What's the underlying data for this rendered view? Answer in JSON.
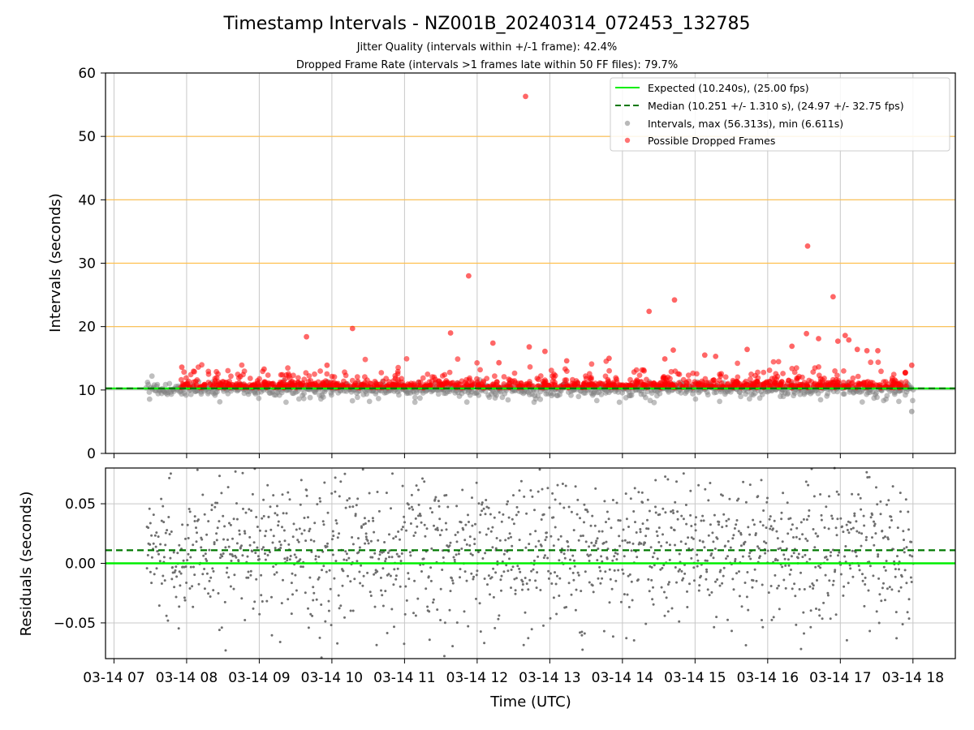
{
  "colors": {
    "expected": "#00ee00",
    "median": "#007700",
    "intervals": "#808080",
    "dropped": "#ff0000",
    "reference_line": "#ffc04d",
    "grid": "#c8c8c8"
  },
  "chart_data": [
    {
      "type": "scatter",
      "title": "Timestamp Intervals - NZ001B_20240314_072453_132785",
      "subtitle_lines": [
        "Jitter Quality (intervals within +/-1 frame): 42.4%",
        "Dropped Frame Rate (intervals >1 frames late within 50 FF files): 79.7%"
      ],
      "xlabel": "",
      "ylabel": "Intervals (seconds)",
      "ylim": [
        0,
        60
      ],
      "yticks": [
        0,
        10,
        20,
        30,
        40,
        50,
        60
      ],
      "xlim": [
        "2024-03-14 06:53",
        "2024-03-14 18:35"
      ],
      "grid": true,
      "reference_lines_y": [
        20,
        30,
        40,
        50
      ],
      "legend": {
        "placement": "top-right",
        "entries": [
          "Expected (10.240s), (25.00 fps)",
          "Median (10.251 +/- 1.310 s), (24.97 +/- 32.75 fps)",
          "Intervals, max (56.313s), min (6.611s)",
          "Possible Dropped Frames"
        ]
      },
      "series": [
        {
          "name": "Expected (10.240s), (25.00 fps)",
          "style": "line",
          "y": 10.24
        },
        {
          "name": "Median (10.251 +/- 1.310 s), (24.97 +/- 32.75 fps)",
          "style": "dashed-line",
          "y": 10.251
        },
        {
          "name": "Intervals, max (56.313s), min (6.611s)",
          "style": "points",
          "x_range": [
            "2024-03-14 07:27",
            "2024-03-14 18:00"
          ],
          "min": 6.611,
          "max": 56.313
        },
        {
          "name": "Possible Dropped Frames",
          "style": "points",
          "outliers": [
            {
              "x": "2024-03-14 12:40",
              "y": 56.3
            },
            {
              "x": "2024-03-14 11:53",
              "y": 28.0
            },
            {
              "x": "2024-03-14 16:33",
              "y": 32.7
            },
            {
              "x": "2024-03-14 16:54",
              "y": 24.7
            },
            {
              "x": "2024-03-14 14:22",
              "y": 22.4
            },
            {
              "x": "2024-03-14 14:43",
              "y": 24.2
            },
            {
              "x": "2024-03-14 10:17",
              "y": 19.7
            },
            {
              "x": "2024-03-14 09:39",
              "y": 18.4
            },
            {
              "x": "2024-03-14 11:38",
              "y": 19.0
            },
            {
              "x": "2024-03-14 16:32",
              "y": 18.9
            },
            {
              "x": "2024-03-14 17:04",
              "y": 18.6
            },
            {
              "x": "2024-03-14 16:42",
              "y": 18.1
            },
            {
              "x": "2024-03-14 16:58",
              "y": 17.7
            },
            {
              "x": "2024-03-14 17:07",
              "y": 17.9
            },
            {
              "x": "2024-03-14 12:13",
              "y": 17.4
            },
            {
              "x": "2024-03-14 12:43",
              "y": 16.8
            },
            {
              "x": "2024-03-14 12:56",
              "y": 16.1
            },
            {
              "x": "2024-03-14 14:42",
              "y": 16.3
            },
            {
              "x": "2024-03-14 15:43",
              "y": 16.4
            },
            {
              "x": "2024-03-14 16:20",
              "y": 16.9
            },
            {
              "x": "2024-03-14 17:14",
              "y": 16.4
            },
            {
              "x": "2024-03-14 17:22",
              "y": 16.2
            },
            {
              "x": "2024-03-14 17:31",
              "y": 16.2
            },
            {
              "x": "2024-03-14 15:08",
              "y": 15.5
            },
            {
              "x": "2024-03-14 15:17",
              "y": 15.3
            },
            {
              "x": "2024-03-14 14:35",
              "y": 14.9
            },
            {
              "x": "2024-03-14 13:49",
              "y": 15.0
            },
            {
              "x": "2024-03-14 12:18",
              "y": 14.3
            },
            {
              "x": "2024-03-14 13:14",
              "y": 14.6
            },
            {
              "x": "2024-03-14 09:56",
              "y": 13.9
            },
            {
              "x": "2024-03-14 17:59",
              "y": 13.9
            },
            {
              "x": "2024-03-14 07:56",
              "y": 13.6
            },
            {
              "x": "2024-03-14 09:04",
              "y": 13.3
            }
          ]
        }
      ]
    },
    {
      "type": "scatter",
      "xlabel": "Time (UTC)",
      "ylabel": "Residuals (seconds)",
      "ylim": [
        -0.08,
        0.08
      ],
      "yticks": [
        -0.05,
        0.0,
        0.05
      ],
      "ytick_labels": [
        "−0.05",
        "0.00",
        "0.05"
      ],
      "xticks": [
        "03-14 07",
        "03-14 08",
        "03-14 09",
        "03-14 10",
        "03-14 11",
        "03-14 12",
        "03-14 13",
        "03-14 14",
        "03-14 15",
        "03-14 16",
        "03-14 17",
        "03-14 18"
      ],
      "grid": true,
      "series": [
        {
          "name": "Expected",
          "style": "line",
          "y": 0.0
        },
        {
          "name": "Median",
          "style": "dashed-line",
          "y": 0.011
        },
        {
          "name": "Residuals",
          "style": "points",
          "x_range": [
            "2024-03-14 07:27",
            "2024-03-14 18:00"
          ],
          "center": 0.011,
          "spread": 0.03
        }
      ]
    }
  ]
}
